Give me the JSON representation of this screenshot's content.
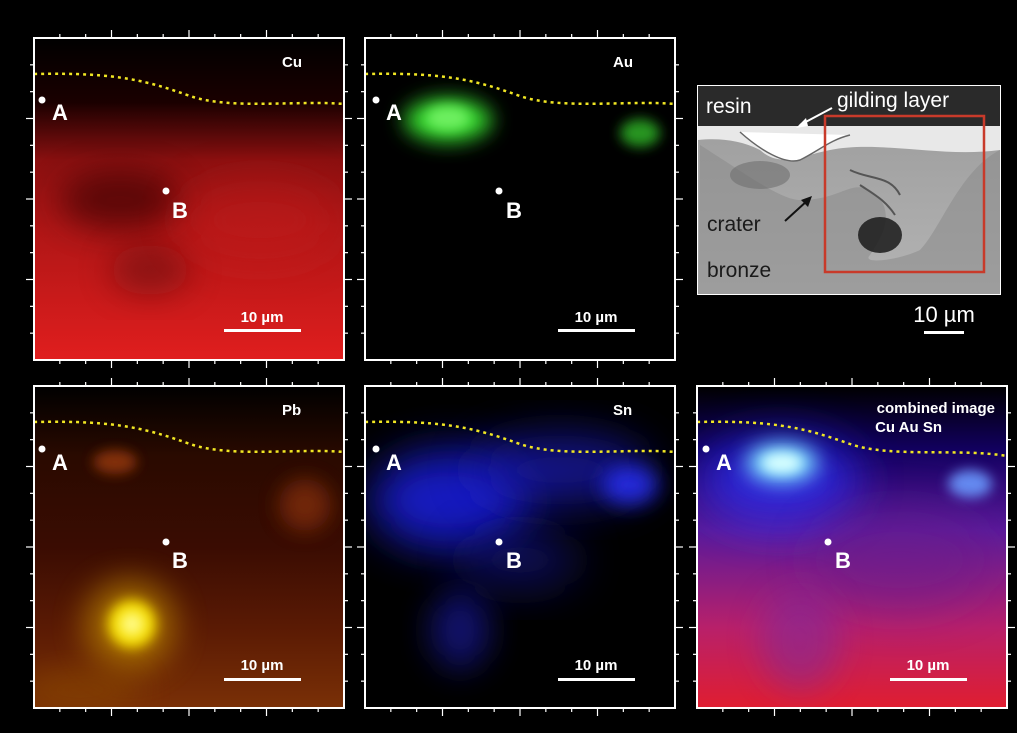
{
  "panels": [
    {
      "element": "Cu",
      "scale_label": "10 µm",
      "point_a": "A",
      "point_b": "B"
    },
    {
      "element": "Au",
      "scale_label": "10 µm",
      "point_a": "A",
      "point_b": "B"
    },
    {
      "element": "Pb",
      "scale_label": "10 µm",
      "point_a": "A",
      "point_b": "B"
    },
    {
      "element": "Sn",
      "scale_label": "10 µm",
      "point_a": "A",
      "point_b": "B"
    },
    {
      "element_line1": "combined image",
      "element_line2": "Cu Au Sn",
      "scale_label": "10 µm",
      "point_a": "A",
      "point_b": "B"
    }
  ],
  "sem": {
    "labels": {
      "resin": "resin",
      "gilding": "gilding layer",
      "crater": "crater",
      "bronze": "bronze"
    },
    "scale_label": "10 µm"
  },
  "colors": {
    "background": "#000000",
    "cu": "#d8201f",
    "au": "#35d62e",
    "pb": "#f5dc00",
    "sn": "#1d22f0",
    "interface_line": "#f0e623",
    "roi_box": "#c83a2a"
  }
}
